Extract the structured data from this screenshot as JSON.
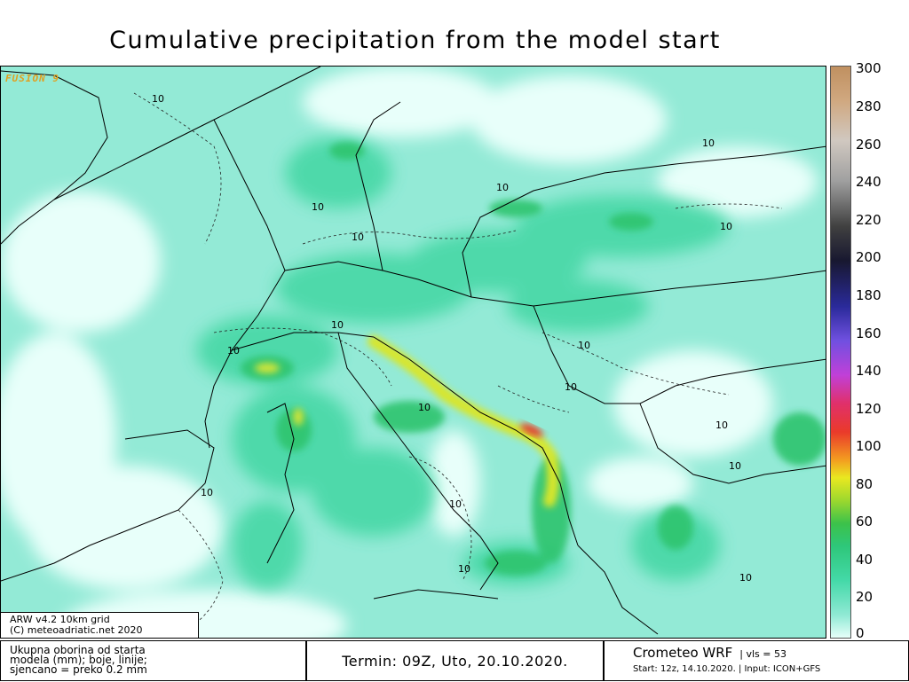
{
  "title": "Cumulative precipitation from the model start",
  "map": {
    "watermark": "FUSION 9",
    "contour_value_label": "10",
    "colors": {
      "land_low": "#8fe9d4",
      "land_mid": "#44d9a8",
      "land_high": "#2ec77a",
      "heavy_green": "#33c060",
      "yellow": "#e9e820",
      "red": "#e83030",
      "dry": "#e6fff9"
    }
  },
  "colorbar": {
    "unit": "mm",
    "ticks": [
      "300",
      "280",
      "260",
      "240",
      "220",
      "200",
      "180",
      "160",
      "140",
      "120",
      "100",
      "80",
      "60",
      "40",
      "20",
      "0"
    ]
  },
  "attribution": {
    "line1": "ARW v4.2 10km grid",
    "line2": "(C) meteoadriatic.net 2020"
  },
  "legend": {
    "line1": "Ukupna oborina od starta",
    "line2": "modela (mm); boje, linije;",
    "line3": "sjencano = preko 0.2 mm"
  },
  "valid_time": "Termin: 09Z, Uto, 20.10.2020.",
  "brand": {
    "name": "Crometeo WRF",
    "vls": "| vls = 53",
    "start": "Start: 12z, 14.10.2020.",
    "input": "| Input: ICON+GFS"
  }
}
